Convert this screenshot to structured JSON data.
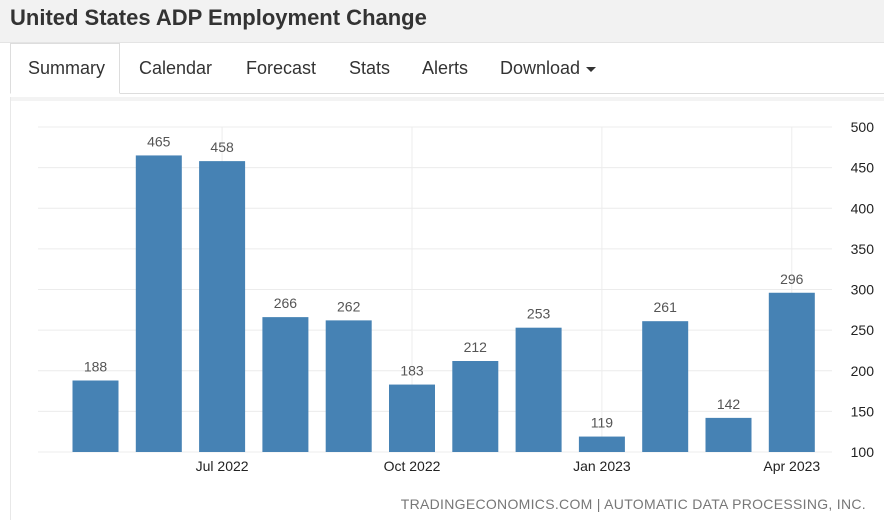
{
  "header": {
    "title": "United States ADP Employment Change"
  },
  "tabs": {
    "summary": "Summary",
    "calendar": "Calendar",
    "forecast": "Forecast",
    "stats": "Stats",
    "alerts": "Alerts",
    "download": "Download"
  },
  "source": "TRADINGECONOMICS.COM | AUTOMATIC DATA PROCESSING, INC.",
  "colors": {
    "bar": "#4682b4",
    "grid": "#ececec"
  },
  "chart_data": {
    "type": "bar",
    "title": "",
    "xlabel": "",
    "ylabel": "",
    "x": [
      "2022-05",
      "2022-06",
      "2022-07",
      "2022-08",
      "2022-09",
      "2022-10",
      "2022-11",
      "2022-12",
      "2023-01",
      "2023-02",
      "2023-03",
      "2023-04"
    ],
    "values": [
      188,
      465,
      458,
      266,
      262,
      183,
      212,
      253,
      119,
      261,
      142,
      296
    ],
    "data_labels": [
      "188",
      "465",
      "458",
      "266",
      "262",
      "183",
      "212",
      "253",
      "119",
      "261",
      "142",
      "296"
    ],
    "x_ticks": [
      {
        "x": "2022-07",
        "label": "Jul 2022"
      },
      {
        "x": "2022-10",
        "label": "Oct 2022"
      },
      {
        "x": "2023-01",
        "label": "Jan 2023"
      },
      {
        "x": "2023-04",
        "label": "Apr 2023"
      }
    ],
    "y_ticks": [
      100,
      150,
      200,
      250,
      300,
      350,
      400,
      450,
      500
    ],
    "ylim": [
      100,
      500
    ],
    "y_axis_side": "right",
    "grid": true,
    "legend": "none"
  }
}
